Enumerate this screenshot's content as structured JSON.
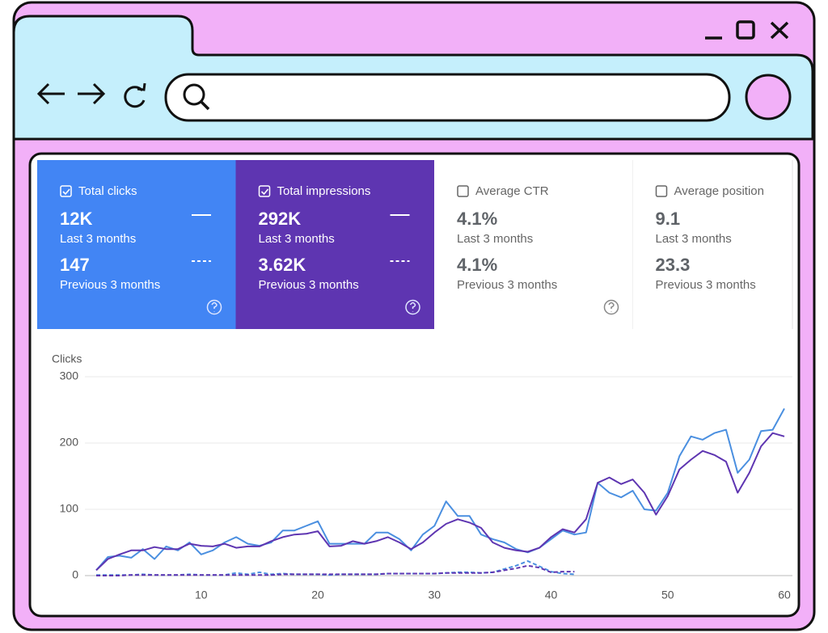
{
  "cards": [
    {
      "label": "Total clicks",
      "current": "12K",
      "current_label": "Last 3 months",
      "previous": "147",
      "previous_label": "Previous 3 months"
    },
    {
      "label": "Total impressions",
      "current": "292K",
      "current_label": "Last 3 months",
      "previous": "3.62K",
      "previous_label": "Previous 3 months"
    },
    {
      "label": "Average CTR",
      "current": "4.1%",
      "current_label": "Last 3 months",
      "previous": "4.1%",
      "previous_label": "Previous 3 months"
    },
    {
      "label": "Average position",
      "current": "9.1",
      "current_label": "Last 3 months",
      "previous": "23.3",
      "previous_label": "Previous 3 months"
    }
  ],
  "chart_data": {
    "type": "line",
    "y_label": "Clicks",
    "x": [
      1,
      2,
      3,
      4,
      5,
      6,
      7,
      8,
      9,
      10,
      11,
      12,
      13,
      14,
      15,
      16,
      17,
      18,
      19,
      20,
      21,
      22,
      23,
      24,
      25,
      26,
      27,
      28,
      29,
      30,
      31,
      32,
      33,
      34,
      35,
      36,
      37,
      38,
      39,
      40,
      41,
      42,
      43,
      44,
      45,
      46,
      47,
      48,
      49,
      50,
      51,
      52,
      53,
      54,
      55,
      56,
      57,
      58,
      59,
      60
    ],
    "xlim": [
      1,
      60
    ],
    "xticks": [
      10,
      20,
      30,
      40,
      50,
      60
    ],
    "ylim": [
      0,
      300
    ],
    "yticks": [
      0,
      100,
      200,
      300
    ],
    "grid": true,
    "series": [
      {
        "color": "#4a8fe0",
        "dashed": false,
        "values": [
          8,
          28,
          30,
          27,
          40,
          25,
          44,
          38,
          50,
          32,
          38,
          50,
          58,
          48,
          45,
          50,
          68,
          68,
          75,
          82,
          48,
          48,
          48,
          48,
          65,
          65,
          55,
          38,
          62,
          75,
          112,
          90,
          90,
          62,
          55,
          50,
          40,
          35,
          42,
          55,
          68,
          62,
          65,
          140,
          125,
          118,
          128,
          100,
          98,
          125,
          180,
          210,
          205,
          215,
          220,
          155,
          175,
          218,
          220,
          252
        ]
      },
      {
        "color": "#5e35b1",
        "dashed": false,
        "values": [
          8,
          25,
          32,
          38,
          38,
          43,
          40,
          40,
          48,
          45,
          44,
          48,
          42,
          44,
          44,
          52,
          58,
          62,
          63,
          67,
          44,
          45,
          52,
          48,
          52,
          58,
          50,
          40,
          50,
          65,
          78,
          85,
          80,
          72,
          50,
          42,
          38,
          36,
          42,
          58,
          70,
          65,
          85,
          140,
          148,
          138,
          145,
          125,
          92,
          120,
          160,
          175,
          188,
          182,
          172,
          125,
          155,
          195,
          215,
          210
        ]
      },
      {
        "color": "#4a8fe0",
        "dashed": true,
        "values": [
          1,
          1,
          1,
          1,
          2,
          1,
          1,
          1,
          2,
          1,
          1,
          1,
          4,
          2,
          5,
          2,
          3,
          2,
          2,
          2,
          1,
          2,
          2,
          2,
          2,
          3,
          3,
          3,
          3,
          3,
          4,
          5,
          5,
          4,
          5,
          10,
          15,
          22,
          14,
          6,
          3,
          2,
          null,
          null,
          null,
          null,
          null,
          null,
          null,
          null,
          null,
          null,
          null,
          null,
          null,
          null,
          null,
          null,
          null,
          null
        ]
      },
      {
        "color": "#5e35b1",
        "dashed": true,
        "values": [
          0,
          0,
          0,
          1,
          1,
          1,
          1,
          1,
          1,
          1,
          1,
          1,
          1,
          1,
          1,
          1,
          2,
          2,
          2,
          2,
          2,
          2,
          2,
          2,
          2,
          3,
          3,
          3,
          3,
          3,
          4,
          4,
          4,
          4,
          5,
          8,
          11,
          15,
          12,
          5,
          6,
          6,
          null,
          null,
          null,
          null,
          null,
          null,
          null,
          null,
          null,
          null,
          null,
          null,
          null,
          null,
          null,
          null,
          null,
          null
        ]
      }
    ]
  }
}
